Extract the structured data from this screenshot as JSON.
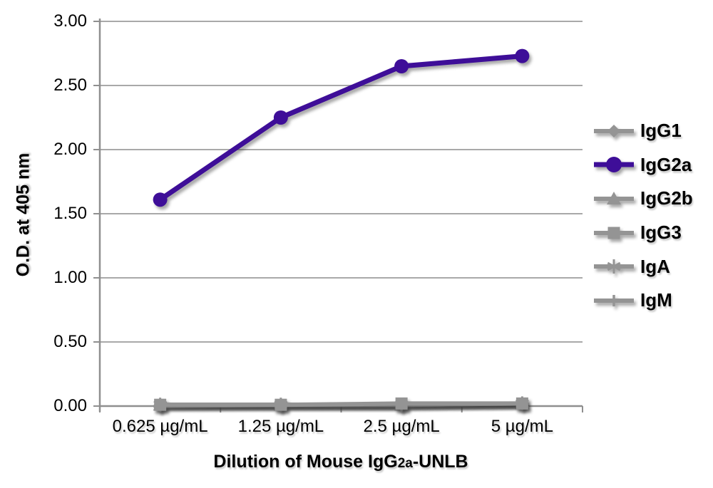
{
  "chart_data": {
    "type": "line",
    "title": "",
    "ylabel": "O.D. at 405 nm",
    "xlabel": {
      "prefix": "Dilution of Mouse IgG",
      "sub": "2a",
      "suffix": "-UNLB",
      "full": "Dilution of Mouse IgG2a-UNLB"
    },
    "categories": [
      "0.625 µg/mL",
      "1.25 µg/mL",
      "2.5 µg/mL",
      "5 µg/mL"
    ],
    "y_tick_labels": [
      "0.00",
      "0.50",
      "1.00",
      "1.50",
      "2.00",
      "2.50",
      "3.00"
    ],
    "y_tick_values": [
      0.0,
      0.5,
      1.0,
      1.5,
      2.0,
      2.5,
      3.0
    ],
    "ylim": [
      0,
      3.0
    ],
    "grid": "horizontal",
    "legend_position": "right",
    "colors": {
      "accent_purple": "#3E0E98",
      "series_gray": "#949494",
      "gridline": "#a9a9a9",
      "axis": "#8f8f8f",
      "text": "#000000"
    },
    "series": [
      {
        "name": "IgG1",
        "marker": "diamond",
        "color": "#949494",
        "values": [
          0.01,
          0.01,
          0.01,
          0.02
        ]
      },
      {
        "name": "IgG2a",
        "marker": "circle",
        "color": "#3E0E98",
        "values": [
          1.61,
          2.25,
          2.65,
          2.73
        ]
      },
      {
        "name": "IgG2b",
        "marker": "triangle",
        "color": "#949494",
        "values": [
          0.01,
          0.01,
          0.01,
          0.02
        ]
      },
      {
        "name": "IgG3",
        "marker": "square",
        "color": "#949494",
        "values": [
          0.01,
          0.01,
          0.02,
          0.02
        ]
      },
      {
        "name": "IgA",
        "marker": "asterisk",
        "color": "#949494",
        "values": [
          0.01,
          0.01,
          0.01,
          0.02
        ]
      },
      {
        "name": "IgM",
        "marker": "dash",
        "color": "#949494",
        "values": [
          0.0,
          0.01,
          0.01,
          0.02
        ]
      }
    ]
  }
}
